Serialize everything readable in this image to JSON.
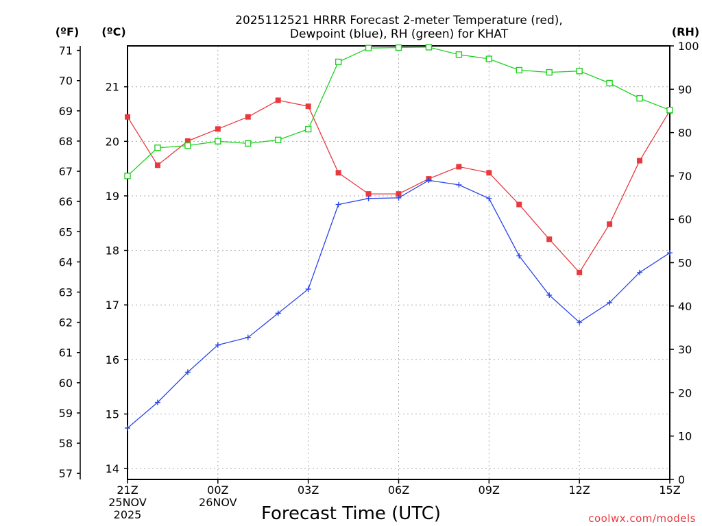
{
  "chart_data": {
    "type": "line",
    "title_line1": "2025112521 HRRR Forecast 2-meter Temperature (red),",
    "title_line2": "Dewpoint (blue), RH (green) for KHAT",
    "xlabel": "Forecast Time (UTC)",
    "credit": "coolwx.com/models",
    "unit_left_f": "(ºF)",
    "unit_left_c": "(ºC)",
    "unit_right": "(RH)",
    "hours": [
      0,
      1,
      2,
      3,
      4,
      5,
      6,
      7,
      8,
      9,
      10,
      11,
      12,
      13,
      14,
      15,
      16,
      17,
      18
    ],
    "x_ticks": [
      {
        "hour": 0,
        "lines": [
          "21Z",
          "25NOV",
          "2025"
        ]
      },
      {
        "hour": 3,
        "lines": [
          "00Z",
          "26NOV"
        ]
      },
      {
        "hour": 6,
        "lines": [
          "03Z"
        ]
      },
      {
        "hour": 9,
        "lines": [
          "06Z"
        ]
      },
      {
        "hour": 12,
        "lines": [
          "09Z"
        ]
      },
      {
        "hour": 15,
        "lines": [
          "12Z"
        ]
      },
      {
        "hour": 18,
        "lines": [
          "15Z"
        ]
      }
    ],
    "f_range": [
      56.8,
      71.15
    ],
    "c_range": [
      13.8,
      21.75
    ],
    "rh_range": [
      0,
      100
    ],
    "f_ticks": [
      57,
      58,
      59,
      60,
      61,
      62,
      63,
      64,
      65,
      66,
      67,
      68,
      69,
      70,
      71
    ],
    "c_ticks": [
      14,
      15,
      16,
      17,
      18,
      19,
      20,
      21
    ],
    "rh_ticks": [
      0,
      10,
      20,
      30,
      40,
      50,
      60,
      70,
      80,
      90,
      100
    ],
    "series": [
      {
        "name": "Temperature",
        "color": "#e8393f",
        "marker": "filled-square",
        "unit": "F",
        "values": [
          68.8,
          67.2,
          68.0,
          68.4,
          68.8,
          69.35,
          69.15,
          66.95,
          66.25,
          66.25,
          66.75,
          67.15,
          66.95,
          65.9,
          64.75,
          63.65,
          65.25,
          67.35,
          69.0
        ]
      },
      {
        "name": "Dewpoint",
        "color": "#2b45e8",
        "marker": "plus",
        "unit": "F",
        "values": [
          58.5,
          59.35,
          60.35,
          61.25,
          61.5,
          62.3,
          63.1,
          65.9,
          66.1,
          66.12,
          66.7,
          66.55,
          66.1,
          64.2,
          62.9,
          62.0,
          62.65,
          63.65,
          64.3
        ]
      },
      {
        "name": "RH",
        "color": "#1fd11f",
        "marker": "open-square",
        "unit": "RH",
        "values": [
          70,
          76.5,
          77,
          78,
          77.5,
          78.3,
          80.8,
          96.3,
          99.5,
          99.6,
          99.7,
          98,
          97,
          94.4,
          93.9,
          94.2,
          91.4,
          87.9,
          85.2
        ]
      }
    ]
  }
}
